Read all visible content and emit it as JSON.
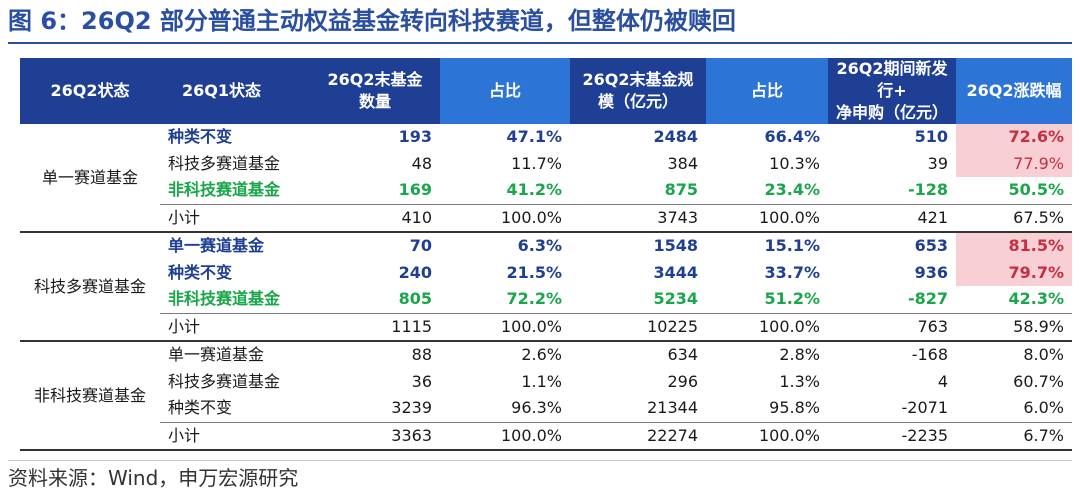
{
  "title": "图 6：26Q2 部分普通主动权益基金转向科技赛道，但整体仍被赎回",
  "headers": {
    "status_q2": "26Q2状态",
    "status_q1": "26Q1状态",
    "count_l1": "26Q2末基金",
    "count_l2": "数量",
    "share1": "占比",
    "scale_l1": "26Q2末基金规",
    "scale_l2": "模（亿元）",
    "share2": "占比",
    "flow_l1": "26Q2期间新发行+",
    "flow_l2": "净申购（亿元）",
    "change": "26Q2涨跌幅"
  },
  "groups": [
    {
      "name": "单一赛道基金",
      "rows": [
        {
          "label": "种类不变",
          "count": "193",
          "share1": "47.1%",
          "scale": "2484",
          "share2": "66.4%",
          "flow": "510",
          "change": "72.6%",
          "style": "blue",
          "highlight": true
        },
        {
          "label": "科技多赛道基金",
          "count": "48",
          "share1": "11.7%",
          "scale": "384",
          "share2": "10.3%",
          "flow": "39",
          "change": "77.9%",
          "style": "plain",
          "highlight": true
        },
        {
          "label": "非科技赛道基金",
          "count": "169",
          "share1": "41.2%",
          "scale": "875",
          "share2": "23.4%",
          "flow": "-128",
          "change": "50.5%",
          "style": "green",
          "highlight": false
        },
        {
          "label": "小计",
          "count": "410",
          "share1": "100.0%",
          "scale": "3743",
          "share2": "100.0%",
          "flow": "421",
          "change": "67.5%",
          "style": "subtotal",
          "highlight": false
        }
      ]
    },
    {
      "name": "科技多赛道基金",
      "rows": [
        {
          "label": "单一赛道基金",
          "count": "70",
          "share1": "6.3%",
          "scale": "1548",
          "share2": "15.1%",
          "flow": "653",
          "change": "81.5%",
          "style": "blue",
          "highlight": true
        },
        {
          "label": "种类不变",
          "count": "240",
          "share1": "21.5%",
          "scale": "3444",
          "share2": "33.7%",
          "flow": "936",
          "change": "79.7%",
          "style": "blue",
          "highlight": true
        },
        {
          "label": "非科技赛道基金",
          "count": "805",
          "share1": "72.2%",
          "scale": "5234",
          "share2": "51.2%",
          "flow": "-827",
          "change": "42.3%",
          "style": "green",
          "highlight": false
        },
        {
          "label": "小计",
          "count": "1115",
          "share1": "100.0%",
          "scale": "10225",
          "share2": "100.0%",
          "flow": "763",
          "change": "58.9%",
          "style": "subtotal",
          "highlight": false
        }
      ]
    },
    {
      "name": "非科技赛道基金",
      "rows": [
        {
          "label": "单一赛道基金",
          "count": "88",
          "share1": "2.6%",
          "scale": "634",
          "share2": "2.8%",
          "flow": "-168",
          "change": "8.0%",
          "style": "plain",
          "highlight": false
        },
        {
          "label": "科技多赛道基金",
          "count": "36",
          "share1": "1.1%",
          "scale": "296",
          "share2": "1.3%",
          "flow": "4",
          "change": "60.7%",
          "style": "plain",
          "highlight": false
        },
        {
          "label": "种类不变",
          "count": "3239",
          "share1": "96.3%",
          "scale": "21344",
          "share2": "95.8%",
          "flow": "-2071",
          "change": "6.0%",
          "style": "plain",
          "highlight": false
        },
        {
          "label": "小计",
          "count": "3363",
          "share1": "100.0%",
          "scale": "22274",
          "share2": "100.0%",
          "flow": "-2235",
          "change": "6.7%",
          "style": "subtotal",
          "highlight": false
        }
      ]
    }
  ],
  "source": "资料来源：Wind，申万宏源研究"
}
